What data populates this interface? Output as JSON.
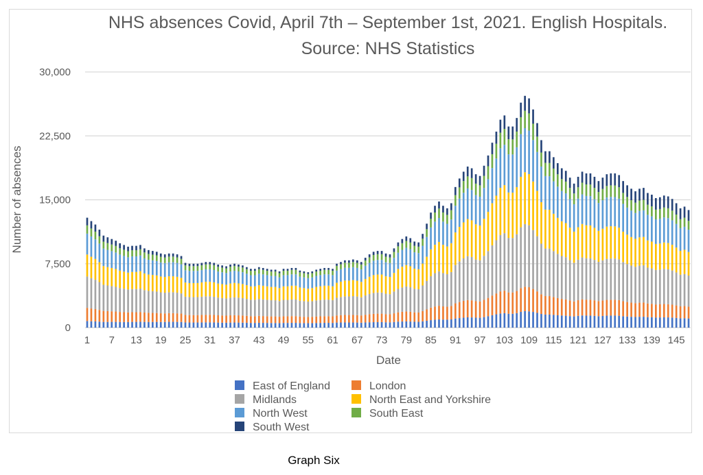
{
  "caption": "Graph Six",
  "chart_data": {
    "type": "bar",
    "stacked": true,
    "title": "NHS absences Covid, April 7th – September 1st, 2021. English Hospitals. Source: NHS Statistics",
    "xlabel": "Date",
    "ylabel": "Number of absences",
    "ylim": [
      0,
      30000
    ],
    "yticks": [
      0,
      7500,
      15000,
      22500,
      30000
    ],
    "ytick_labels": [
      "0",
      "7,500",
      "15,000",
      "22,500",
      "30,000"
    ],
    "xticks": [
      1,
      7,
      13,
      19,
      25,
      31,
      37,
      43,
      49,
      55,
      61,
      67,
      73,
      79,
      85,
      91,
      97,
      103,
      109,
      115,
      121,
      127,
      133,
      139,
      145
    ],
    "grid": true,
    "legend_position": "bottom",
    "x_start": 1,
    "totals": [
      12900,
      12500,
      12100,
      11500,
      10800,
      10600,
      10400,
      10200,
      9900,
      9700,
      9500,
      9600,
      9600,
      9700,
      9300,
      9100,
      9000,
      8900,
      8700,
      8600,
      8700,
      8700,
      8600,
      8400,
      7600,
      7500,
      7500,
      7500,
      7600,
      7700,
      7700,
      7600,
      7400,
      7300,
      7200,
      7400,
      7500,
      7400,
      7300,
      7100,
      6900,
      6900,
      7100,
      7000,
      6900,
      6800,
      6800,
      6600,
      6900,
      6900,
      7000,
      7000,
      6700,
      6600,
      6500,
      6600,
      6800,
      6900,
      7000,
      7000,
      6900,
      7500,
      7700,
      7900,
      7900,
      8000,
      7900,
      7700,
      8200,
      8600,
      8900,
      9000,
      9000,
      8700,
      8600,
      9300,
      10000,
      10400,
      10700,
      10500,
      10100,
      10000,
      11000,
      12200,
      13500,
      14300,
      14800,
      14300,
      14000,
      14600,
      16500,
      17500,
      18300,
      18900,
      18700,
      18000,
      17800,
      19000,
      20200,
      21700,
      23000,
      24400,
      24900,
      23600,
      23600,
      24600,
      26400,
      27200,
      26900,
      25600,
      24000,
      22000,
      20700,
      20700,
      20000,
      19300,
      18700,
      18400,
      17600,
      16900,
      17700,
      18300,
      18100,
      18100,
      17700,
      17200,
      17600,
      18000,
      18100,
      18100,
      17900,
      17200,
      16700,
      16300,
      16000,
      16300,
      16400,
      15800,
      15600,
      15200,
      15300,
      15500,
      15400,
      15100,
      14600,
      14000,
      14200,
      13800
    ],
    "categories_note": "Day index 1..148",
    "series": [
      {
        "name": "East of England",
        "color": "#4472c4",
        "share": [
          0.06,
          0.06,
          0.06,
          0.061,
          0.062,
          0.063,
          0.065,
          0.066,
          0.067,
          0.068,
          0.069,
          0.07,
          0.07,
          0.071,
          0.072,
          0.073,
          0.074,
          0.075,
          0.076,
          0.077,
          0.078,
          0.078,
          0.078,
          0.079,
          0.08,
          0.08,
          0.08,
          0.08,
          0.08,
          0.08,
          0.08,
          0.08,
          0.08,
          0.08,
          0.08,
          0.08,
          0.08,
          0.08,
          0.08,
          0.08,
          0.08,
          0.08,
          0.08,
          0.08,
          0.08,
          0.08,
          0.08,
          0.08,
          0.08,
          0.08,
          0.08,
          0.08,
          0.08,
          0.08,
          0.08,
          0.08,
          0.08,
          0.08,
          0.08,
          0.08,
          0.08,
          0.079,
          0.078,
          0.077,
          0.076,
          0.075,
          0.075,
          0.075,
          0.074,
          0.073,
          0.072,
          0.072,
          0.072,
          0.072,
          0.072,
          0.071,
          0.07,
          0.069,
          0.068,
          0.068,
          0.068,
          0.068,
          0.067,
          0.066,
          0.065,
          0.065,
          0.065,
          0.066,
          0.067,
          0.066,
          0.065,
          0.064,
          0.064,
          0.064,
          0.064,
          0.065,
          0.065,
          0.065,
          0.066,
          0.067,
          0.068,
          0.068,
          0.068,
          0.069,
          0.069,
          0.069,
          0.07,
          0.071,
          0.071,
          0.072,
          0.072,
          0.073,
          0.074,
          0.074,
          0.075,
          0.075,
          0.076,
          0.076,
          0.077,
          0.078,
          0.078,
          0.078,
          0.078,
          0.078,
          0.078,
          0.078,
          0.078,
          0.078,
          0.078,
          0.078,
          0.078,
          0.078,
          0.078,
          0.078,
          0.078,
          0.078,
          0.078,
          0.078,
          0.078,
          0.078,
          0.078,
          0.078,
          0.078,
          0.078,
          0.078,
          0.078,
          0.078,
          0.078
        ]
      },
      {
        "name": "London",
        "color": "#ed7d31",
        "share_const": 0.12
      },
      {
        "name": "Midlands",
        "color": "#a5a5a5",
        "share_const": 0.28
      },
      {
        "name": "North East and Yorkshire",
        "color": "#ffc000",
        "share_const": 0.21
      },
      {
        "name": "North West",
        "color": "#5b9bd5",
        "share_const": 0.19
      },
      {
        "name": "South East",
        "color": "#70ad47",
        "share_const": 0.075
      },
      {
        "name": "South West",
        "color": "#264478",
        "share_rest": true
      }
    ]
  }
}
